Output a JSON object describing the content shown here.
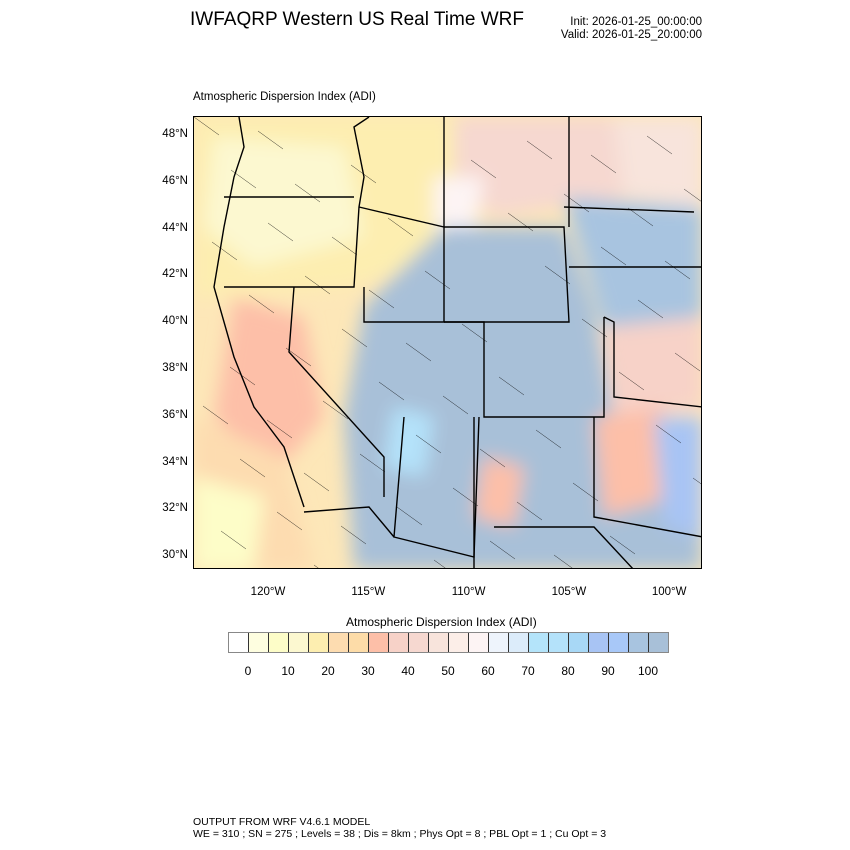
{
  "header": {
    "title": "IWFAQRP Western US Real Time WRF",
    "init": "Init: 2026-01-25_00:00:00",
    "valid": "Valid: 2026-01-25_20:00:00"
  },
  "map": {
    "subtitle": "Atmospheric Dispersion Index   (ADI)",
    "lat_ticks": [
      "48°N",
      "46°N",
      "44°N",
      "42°N",
      "40°N",
      "38°N",
      "36°N",
      "34°N",
      "32°N",
      "30°N"
    ],
    "lon_ticks": [
      "120°W",
      "115°W",
      "110°W",
      "105°W",
      "100°W"
    ]
  },
  "colorbar": {
    "title": "Atmospheric Dispersion Index  (ADI)",
    "labels": [
      "0",
      "10",
      "20",
      "30",
      "40",
      "50",
      "60",
      "70",
      "80",
      "90",
      "100"
    ],
    "colors": [
      "#ffffff",
      "#fefee0",
      "#fdfdc8",
      "#fcf8d0",
      "#fdeeb0",
      "#fddcb0",
      "#fddca8",
      "#fdbfa8",
      "#f7d2c8",
      "#f6d8d0",
      "#f8e4dc",
      "#fceee8",
      "#fdf4f4",
      "#eef4fc",
      "#dcecfa",
      "#b4e4fa",
      "#b4e2fa",
      "#a8d8f6",
      "#a8c4f4",
      "#a8c8f8",
      "#a8c4e0",
      "#a8c0d8"
    ]
  },
  "footer": {
    "line1": "OUTPUT FROM WRF V4.6.1 MODEL",
    "line2": "WE = 310 ; SN = 275 ; Levels = 38 ; Dis = 8km ; Phys Opt = 8 ; PBL Opt = 1 ; Cu Opt = 3"
  }
}
